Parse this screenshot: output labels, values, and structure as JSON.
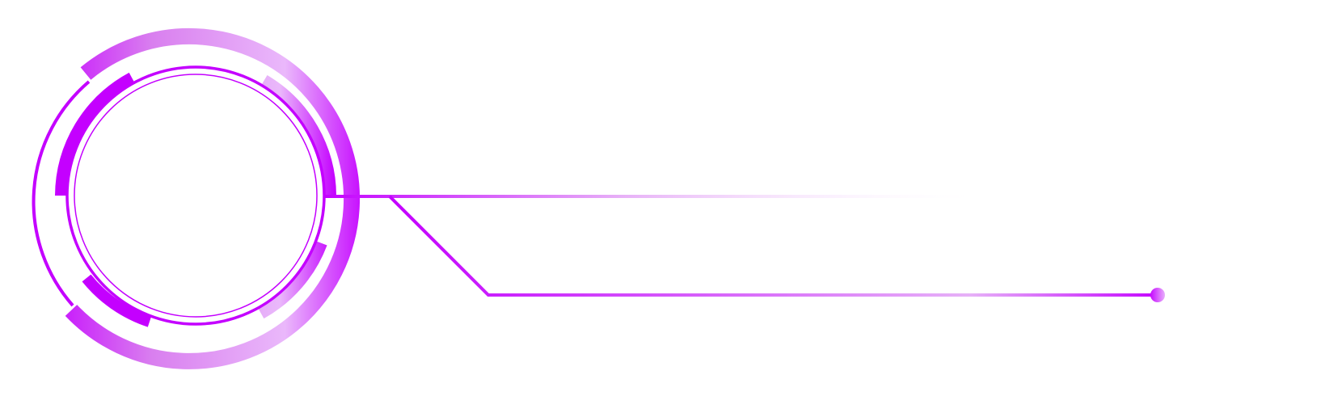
{
  "colors": {
    "accent": "#c400ff",
    "accent_mid": "#d98ef0",
    "accent_light": "#eab8fb",
    "background": "#ffffff"
  },
  "icons": [
    "ring-frame-icon",
    "connector-dot-icon"
  ]
}
